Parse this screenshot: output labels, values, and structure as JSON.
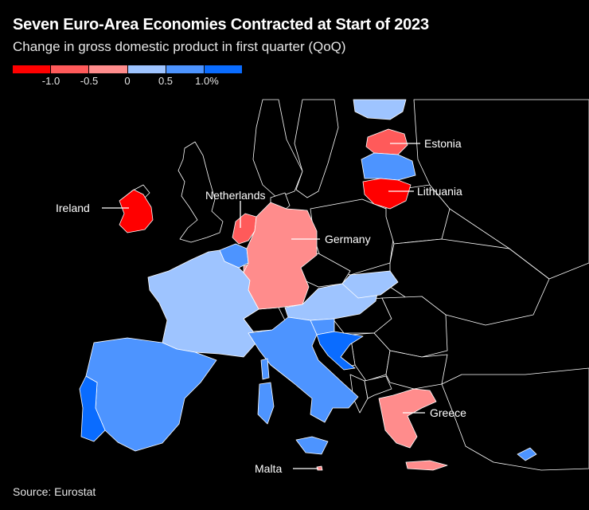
{
  "title": "Seven Euro-Area Economies Contracted at Start of 2023",
  "subtitle": "Change in gross domestic product in first quarter (QoQ)",
  "legend": {
    "colors": [
      "#ff0000",
      "#ff5a5a",
      "#ff8c8c",
      "#9ec4ff",
      "#4d94ff",
      "#0a6cff"
    ],
    "ticks": [
      "-1.0",
      "-0.5",
      "0",
      "0.5",
      "1.0%"
    ]
  },
  "source": "Source: Eurostat",
  "colors": {
    "background": "#000000",
    "non_euro": "#000000",
    "border": "#ffffff"
  },
  "labels": {
    "estonia": "Estonia",
    "lithuania": "Lithuania",
    "ireland": "Ireland",
    "netherlands": "Netherlands",
    "germany": "Germany",
    "greece": "Greece",
    "malta": "Malta"
  }
}
